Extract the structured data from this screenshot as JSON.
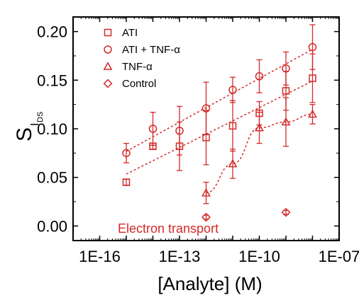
{
  "chart_data": {
    "type": "scatter",
    "xscale": "log",
    "xlim": [
      1e-17,
      1e-07
    ],
    "ylim": [
      -0.015,
      0.215
    ],
    "xticks": [
      "1E-16",
      "1E-13",
      "1E-10",
      "1E-07"
    ],
    "yticks": [
      "0.00",
      "0.05",
      "0.10",
      "0.15",
      "0.20"
    ],
    "xlabel": "[Analyte] (M)",
    "ylabel_main": "S",
    "ylabel_sub_main": "I",
    "ylabel_sub_sub": "DS",
    "annotation": "Electron transport",
    "legend_position": "top-left",
    "grid": false,
    "accent_color": "#d42a2a",
    "series": [
      {
        "name": "ATI",
        "marker": "square",
        "fit_line": true,
        "points": [
          {
            "x": 1e-15,
            "y": 0.045,
            "err": 0.003
          },
          {
            "x": 1e-14,
            "y": 0.082,
            "err": 0.003
          },
          {
            "x": 1e-13,
            "y": 0.082,
            "err": 0.025
          },
          {
            "x": 1e-12,
            "y": 0.091,
            "err": 0.028
          },
          {
            "x": 1e-11,
            "y": 0.103,
            "err": 0.026
          },
          {
            "x": 1e-10,
            "y": 0.116,
            "err": 0.012
          },
          {
            "x": 1e-09,
            "y": 0.139,
            "err": 0.02
          },
          {
            "x": 1e-08,
            "y": 0.152,
            "err": 0.025
          }
        ]
      },
      {
        "name": "ATI + TNF-α",
        "marker": "circle",
        "fit_line": true,
        "points": [
          {
            "x": 1e-15,
            "y": 0.075,
            "err": 0.01
          },
          {
            "x": 1e-14,
            "y": 0.1,
            "err": 0.017
          },
          {
            "x": 1e-13,
            "y": 0.098,
            "err": 0.025
          },
          {
            "x": 1e-12,
            "y": 0.121,
            "err": 0.027
          },
          {
            "x": 1e-11,
            "y": 0.14,
            "err": 0.013
          },
          {
            "x": 1e-10,
            "y": 0.154,
            "err": 0.017
          },
          {
            "x": 1e-09,
            "y": 0.162,
            "err": 0.017
          },
          {
            "x": 1e-08,
            "y": 0.184,
            "err": 0.023
          }
        ]
      },
      {
        "name": "TNF-α",
        "marker": "triangle",
        "fit_curve": true,
        "points": [
          {
            "x": 1e-12,
            "y": 0.034,
            "err": 0.011
          },
          {
            "x": 1e-11,
            "y": 0.064,
            "err": 0.015
          },
          {
            "x": 1e-10,
            "y": 0.101,
            "err": 0.016
          },
          {
            "x": 1e-09,
            "y": 0.107,
            "err": 0.025
          },
          {
            "x": 1e-08,
            "y": 0.115,
            "err": 0.01
          }
        ]
      },
      {
        "name": "Control",
        "marker": "diamond",
        "fit_line": false,
        "points": [
          {
            "x": 1e-12,
            "y": 0.009,
            "err": 0.002
          },
          {
            "x": 1e-09,
            "y": 0.014,
            "err": 0.002
          }
        ]
      }
    ]
  }
}
